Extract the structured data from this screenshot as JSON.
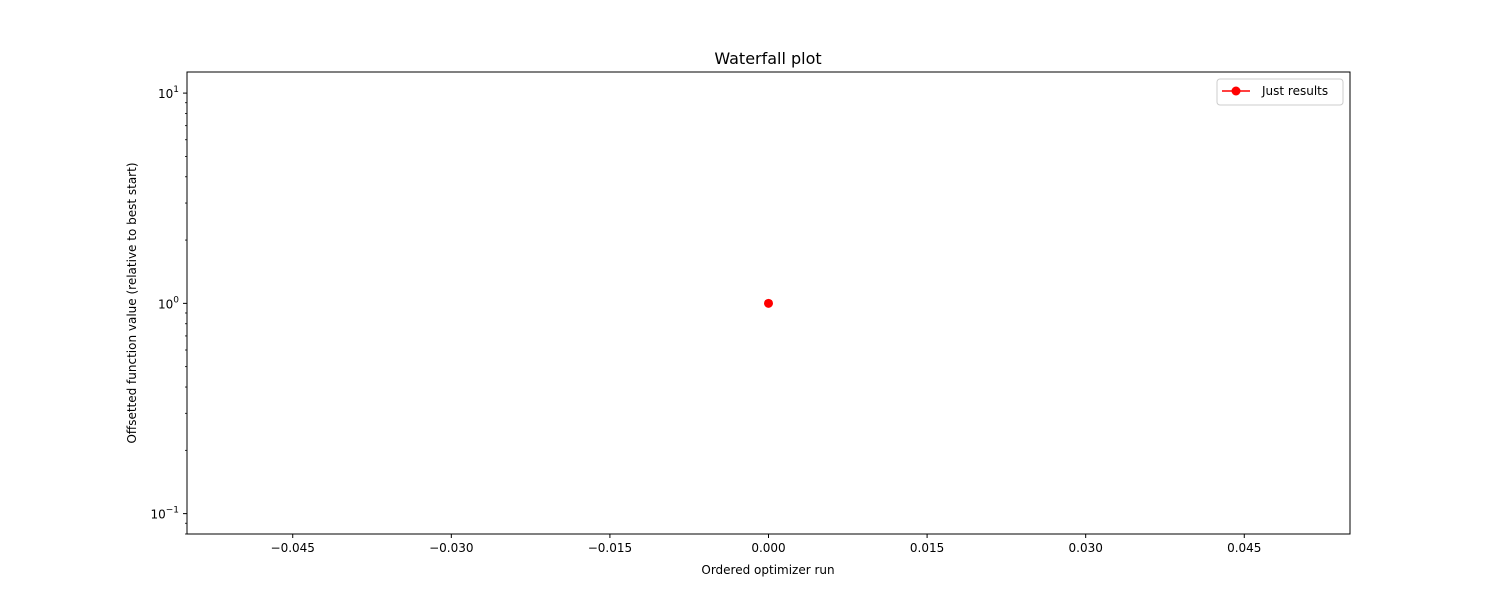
{
  "chart_data": {
    "type": "scatter",
    "title": "Waterfall plot",
    "xlabel": "Ordered optimizer run",
    "ylabel": "Offsetted function value (relative to best start)",
    "xlim": [
      -0.055,
      0.055
    ],
    "ylim": [
      0.08,
      12.6
    ],
    "yscale": "log",
    "x_ticks": [
      -0.045,
      -0.03,
      -0.015,
      0.0,
      0.015,
      0.03,
      0.045
    ],
    "x_tick_labels": [
      "−0.045",
      "−0.030",
      "−0.015",
      "0.000",
      "0.015",
      "0.030",
      "0.045"
    ],
    "y_ticks": [
      0.1,
      1,
      10
    ],
    "y_tick_base_labels": [
      "10",
      "10",
      "10"
    ],
    "y_tick_exponent_labels": [
      "−1",
      "0",
      "1"
    ],
    "grid": false,
    "legend_position": "upper right",
    "series": [
      {
        "name": "Just results",
        "color": "#ff0000",
        "marker": "circle",
        "x": [
          0
        ],
        "y": [
          1
        ]
      }
    ]
  }
}
